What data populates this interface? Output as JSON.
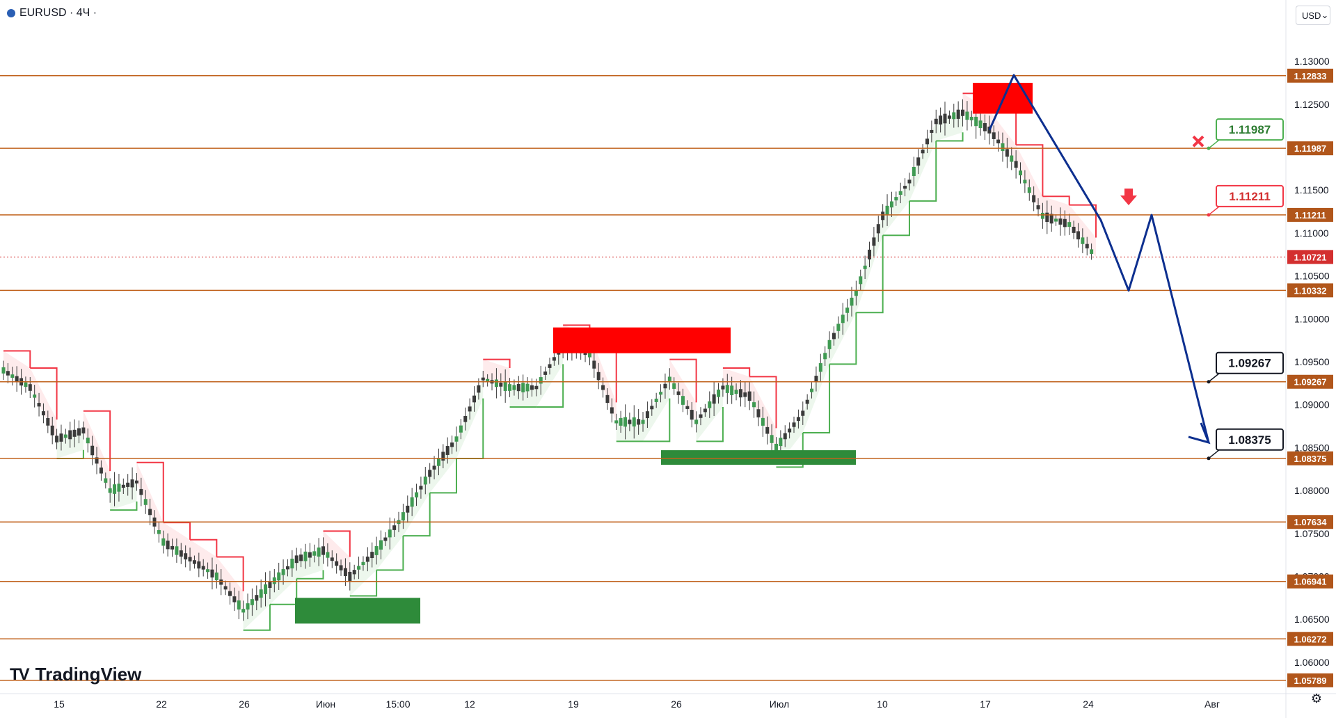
{
  "header": {
    "symbol": "EURUSD · 4Ч ·",
    "currency": "USD"
  },
  "branding": {
    "logo_text": "TradingView"
  },
  "icons": {
    "settings": "gear-icon",
    "symbol": "globe-icon",
    "dropdown": "chevron-down-icon"
  },
  "colors": {
    "level_line": "#c0621c",
    "label_bg": "#b1561b",
    "bullish_band": "#4caf50",
    "bearish_band": "#f23645",
    "arrow_path": "#0d2f8f",
    "resistance_zone": "#ff0000",
    "support_zone": "#2e8b3a",
    "current_price": "#d32f2f"
  },
  "chart_data": {
    "type": "candlestick",
    "symbol": "EURUSD",
    "timeframe": "4Ч",
    "ylim": [
      1.0565,
      1.1335
    ],
    "y_ticks": [
      1.13,
      1.125,
      1.12,
      1.115,
      1.11,
      1.105,
      1.1,
      1.095,
      1.09,
      1.085,
      1.08,
      1.075,
      1.07,
      1.065,
      1.06
    ],
    "x_ticks": [
      "15",
      "22",
      "26",
      "Июн",
      "15:00",
      "12",
      "19",
      "26",
      "Июл",
      "10",
      "17",
      "24",
      "Авг"
    ],
    "levels": [
      1.12833,
      1.11987,
      1.11211,
      1.10332,
      1.09267,
      1.08375,
      1.07634,
      1.06941,
      1.06272,
      1.05789
    ],
    "current_price": 1.10721,
    "callouts": [
      {
        "text": "1.11987",
        "style": "green"
      },
      {
        "text": "1.11211",
        "style": "red"
      },
      {
        "text": "1.09267",
        "style": "black"
      },
      {
        "text": "1.08375",
        "style": "black"
      }
    ],
    "zones": [
      {
        "type": "resistance",
        "price_top": 1.1275,
        "price_bottom": 1.1239
      },
      {
        "type": "resistance",
        "price_top": 1.099,
        "price_bottom": 1.096
      },
      {
        "type": "support",
        "price_top": 1.0847,
        "price_bottom": 1.083
      },
      {
        "type": "support",
        "price_top": 1.0675,
        "price_bottom": 1.0645
      }
    ],
    "forecast_path": [
      1.122,
      1.1284,
      1.1115,
      1.1033,
      1.1121,
      1.0856
    ],
    "price_path": [
      1.094,
      1.092,
      1.086,
      1.087,
      1.08,
      1.081,
      1.074,
      1.072,
      1.07,
      1.066,
      1.069,
      1.072,
      1.073,
      1.07,
      1.073,
      1.077,
      1.082,
      1.086,
      1.093,
      1.092,
      1.092,
      1.097,
      1.096,
      1.088,
      1.088,
      1.093,
      1.088,
      1.092,
      1.091,
      1.085,
      1.089,
      1.097,
      1.103,
      1.112,
      1.116,
      1.123,
      1.124,
      1.122,
      1.118,
      1.112,
      1.111,
      1.1072
    ]
  }
}
